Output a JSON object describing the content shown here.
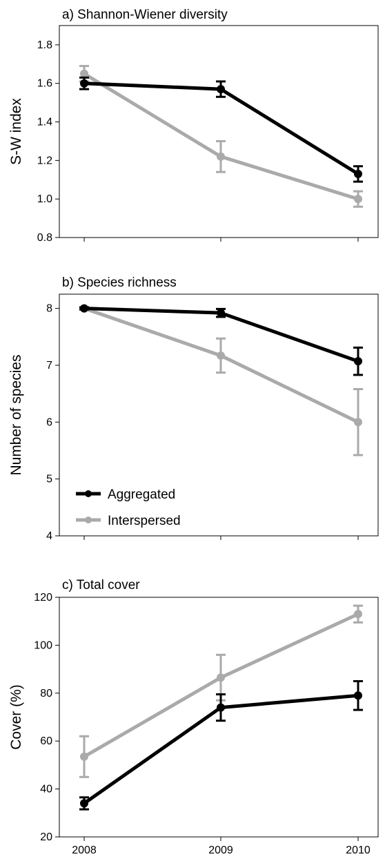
{
  "chart_data": [
    {
      "type": "line",
      "title": "a) Shannon-Wiener diversity",
      "ylabel": "S-W index",
      "xlabel": "",
      "categories": [
        "2008",
        "2009",
        "2010"
      ],
      "ylim": [
        0.8,
        1.9
      ],
      "yticks": [
        0.8,
        1.0,
        1.2,
        1.4,
        1.6,
        1.8
      ],
      "ytick_labels": [
        "0.8",
        "1.0",
        "1.2",
        "1.4",
        "1.6",
        "1.8"
      ],
      "show_xtick_labels": false,
      "series": [
        {
          "name": "Aggregated",
          "color": "#000000",
          "values": [
            1.6,
            1.57,
            1.13
          ],
          "err": [
            0.03,
            0.04,
            0.04
          ]
        },
        {
          "name": "Interspersed",
          "color": "#aaaaaa",
          "values": [
            1.65,
            1.22,
            1.0
          ],
          "err": [
            0.04,
            0.08,
            0.04
          ]
        }
      ]
    },
    {
      "type": "line",
      "title": "b) Species richness",
      "ylabel": "Number of species",
      "xlabel": "",
      "categories": [
        "2008",
        "2009",
        "2010"
      ],
      "ylim": [
        4,
        8.25
      ],
      "yticks": [
        4,
        5,
        6,
        7,
        8
      ],
      "ytick_labels": [
        "4",
        "5",
        "6",
        "7",
        "8"
      ],
      "show_xtick_labels": false,
      "legend": {
        "position": "bottom-left",
        "entries": [
          "Aggregated",
          "Interspersed"
        ]
      },
      "series": [
        {
          "name": "Aggregated",
          "color": "#000000",
          "values": [
            8.0,
            7.92,
            7.07
          ],
          "err": [
            0.02,
            0.07,
            0.24
          ]
        },
        {
          "name": "Interspersed",
          "color": "#aaaaaa",
          "values": [
            8.0,
            7.17,
            6.0
          ],
          "err": [
            0.02,
            0.3,
            0.58
          ]
        }
      ]
    },
    {
      "type": "line",
      "title": "c) Total cover",
      "ylabel": "Cover (%)",
      "xlabel": "",
      "categories": [
        "2008",
        "2009",
        "2010"
      ],
      "ylim": [
        20,
        120
      ],
      "yticks": [
        20,
        40,
        60,
        80,
        100,
        120
      ],
      "ytick_labels": [
        "20",
        "40",
        "60",
        "80",
        "100",
        "120"
      ],
      "show_xtick_labels": true,
      "series": [
        {
          "name": "Aggregated",
          "color": "#000000",
          "values": [
            34,
            74,
            79
          ],
          "err": [
            2.5,
            5.5,
            6
          ]
        },
        {
          "name": "Interspersed",
          "color": "#aaaaaa",
          "values": [
            53.5,
            86.5,
            113
          ],
          "err": [
            8.5,
            9.5,
            3.5
          ]
        }
      ]
    }
  ]
}
